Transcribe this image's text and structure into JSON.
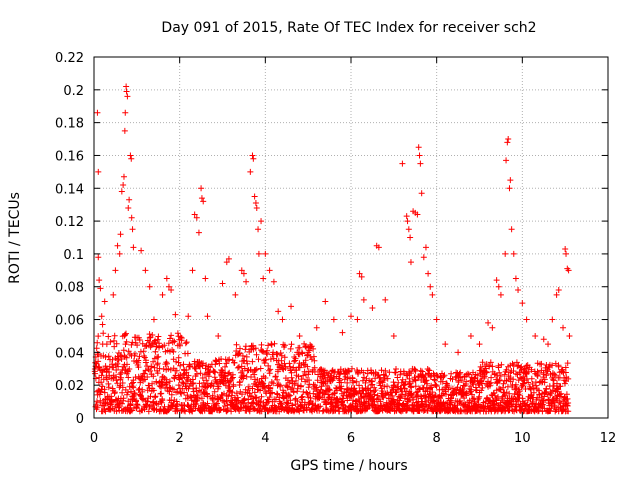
{
  "chart_data": {
    "type": "scatter",
    "title": "Day 091 of 2015, Rate Of TEC Index for receiver sch2",
    "xlabel": "GPS time / hours",
    "ylabel": "ROTI / TECUs",
    "xlim": [
      0,
      12
    ],
    "ylim": [
      0,
      0.22
    ],
    "grid": true,
    "marker": "+",
    "color": "#ff0000",
    "x_ticks": [
      0,
      2,
      4,
      6,
      8,
      10,
      12
    ],
    "x_tick_labels": [
      "0",
      "2",
      "4",
      "6",
      "8",
      "10",
      "12"
    ],
    "y_ticks": [
      0,
      0.02,
      0.04,
      0.06,
      0.08,
      0.1,
      0.12,
      0.14,
      0.16,
      0.18,
      0.2,
      0.22
    ],
    "y_tick_labels": [
      "0",
      "0.02",
      "0.04",
      "0.06",
      "0.08",
      "0.1",
      "0.12",
      "0.14",
      "0.16",
      "0.18",
      "0.2",
      "0.22"
    ],
    "series": [
      {
        "name": "ROTI",
        "points": [
          [
            0.08,
            0.186
          ],
          [
            0.1,
            0.15
          ],
          [
            0.1,
            0.098
          ],
          [
            0.12,
            0.084
          ],
          [
            0.15,
            0.079
          ],
          [
            0.18,
            0.062
          ],
          [
            0.2,
            0.057
          ],
          [
            0.25,
            0.071
          ],
          [
            0.3,
            0.045
          ],
          [
            0.35,
            0.028
          ],
          [
            0.45,
            0.075
          ],
          [
            0.5,
            0.09
          ],
          [
            0.55,
            0.105
          ],
          [
            0.6,
            0.1
          ],
          [
            0.62,
            0.112
          ],
          [
            0.65,
            0.138
          ],
          [
            0.68,
            0.142
          ],
          [
            0.7,
            0.147
          ],
          [
            0.72,
            0.175
          ],
          [
            0.73,
            0.186
          ],
          [
            0.75,
            0.202
          ],
          [
            0.76,
            0.199
          ],
          [
            0.78,
            0.196
          ],
          [
            0.8,
            0.128
          ],
          [
            0.82,
            0.133
          ],
          [
            0.85,
            0.16
          ],
          [
            0.87,
            0.158
          ],
          [
            0.88,
            0.122
          ],
          [
            0.9,
            0.115
          ],
          [
            0.92,
            0.104
          ],
          [
            1.1,
            0.102
          ],
          [
            1.2,
            0.09
          ],
          [
            1.3,
            0.08
          ],
          [
            1.4,
            0.06
          ],
          [
            1.6,
            0.075
          ],
          [
            1.7,
            0.085
          ],
          [
            1.75,
            0.08
          ],
          [
            1.8,
            0.078
          ],
          [
            1.9,
            0.063
          ],
          [
            2.0,
            0.045
          ],
          [
            2.2,
            0.062
          ],
          [
            2.3,
            0.09
          ],
          [
            2.35,
            0.124
          ],
          [
            2.4,
            0.122
          ],
          [
            2.45,
            0.113
          ],
          [
            2.5,
            0.14
          ],
          [
            2.52,
            0.134
          ],
          [
            2.55,
            0.132
          ],
          [
            2.6,
            0.085
          ],
          [
            2.65,
            0.062
          ],
          [
            2.9,
            0.05
          ],
          [
            3.0,
            0.082
          ],
          [
            3.1,
            0.095
          ],
          [
            3.15,
            0.097
          ],
          [
            3.3,
            0.075
          ],
          [
            3.45,
            0.09
          ],
          [
            3.5,
            0.088
          ],
          [
            3.55,
            0.083
          ],
          [
            3.65,
            0.15
          ],
          [
            3.7,
            0.16
          ],
          [
            3.72,
            0.158
          ],
          [
            3.75,
            0.135
          ],
          [
            3.78,
            0.131
          ],
          [
            3.8,
            0.128
          ],
          [
            3.83,
            0.115
          ],
          [
            3.85,
            0.1
          ],
          [
            3.9,
            0.12
          ],
          [
            3.95,
            0.085
          ],
          [
            4.0,
            0.1
          ],
          [
            4.1,
            0.09
          ],
          [
            4.2,
            0.083
          ],
          [
            4.3,
            0.065
          ],
          [
            4.4,
            0.06
          ],
          [
            4.6,
            0.068
          ],
          [
            4.8,
            0.05
          ],
          [
            5.0,
            0.04
          ],
          [
            5.2,
            0.055
          ],
          [
            5.4,
            0.071
          ],
          [
            5.6,
            0.06
          ],
          [
            5.8,
            0.052
          ],
          [
            6.0,
            0.062
          ],
          [
            6.15,
            0.06
          ],
          [
            6.2,
            0.088
          ],
          [
            6.25,
            0.086
          ],
          [
            6.3,
            0.072
          ],
          [
            6.5,
            0.067
          ],
          [
            6.6,
            0.105
          ],
          [
            6.65,
            0.104
          ],
          [
            6.8,
            0.072
          ],
          [
            7.0,
            0.05
          ],
          [
            7.2,
            0.155
          ],
          [
            7.3,
            0.123
          ],
          [
            7.32,
            0.12
          ],
          [
            7.35,
            0.115
          ],
          [
            7.38,
            0.11
          ],
          [
            7.4,
            0.095
          ],
          [
            7.45,
            0.126
          ],
          [
            7.5,
            0.125
          ],
          [
            7.55,
            0.124
          ],
          [
            7.58,
            0.165
          ],
          [
            7.6,
            0.16
          ],
          [
            7.62,
            0.155
          ],
          [
            7.65,
            0.137
          ],
          [
            7.7,
            0.098
          ],
          [
            7.75,
            0.104
          ],
          [
            7.8,
            0.088
          ],
          [
            7.85,
            0.08
          ],
          [
            7.9,
            0.075
          ],
          [
            8.0,
            0.06
          ],
          [
            8.2,
            0.045
          ],
          [
            8.5,
            0.04
          ],
          [
            8.8,
            0.05
          ],
          [
            9.0,
            0.045
          ],
          [
            9.2,
            0.058
          ],
          [
            9.3,
            0.055
          ],
          [
            9.4,
            0.084
          ],
          [
            9.45,
            0.08
          ],
          [
            9.5,
            0.075
          ],
          [
            9.6,
            0.1
          ],
          [
            9.62,
            0.157
          ],
          [
            9.65,
            0.168
          ],
          [
            9.67,
            0.17
          ],
          [
            9.7,
            0.14
          ],
          [
            9.72,
            0.145
          ],
          [
            9.75,
            0.115
          ],
          [
            9.8,
            0.1
          ],
          [
            9.85,
            0.085
          ],
          [
            9.9,
            0.078
          ],
          [
            10.0,
            0.07
          ],
          [
            10.1,
            0.06
          ],
          [
            10.3,
            0.05
          ],
          [
            10.5,
            0.048
          ],
          [
            10.6,
            0.045
          ],
          [
            10.7,
            0.06
          ],
          [
            10.8,
            0.075
          ],
          [
            10.85,
            0.078
          ],
          [
            10.95,
            0.055
          ],
          [
            11.0,
            0.103
          ],
          [
            11.02,
            0.1
          ],
          [
            11.05,
            0.091
          ],
          [
            11.08,
            0.09
          ],
          [
            11.1,
            0.05
          ]
        ]
      }
    ]
  }
}
